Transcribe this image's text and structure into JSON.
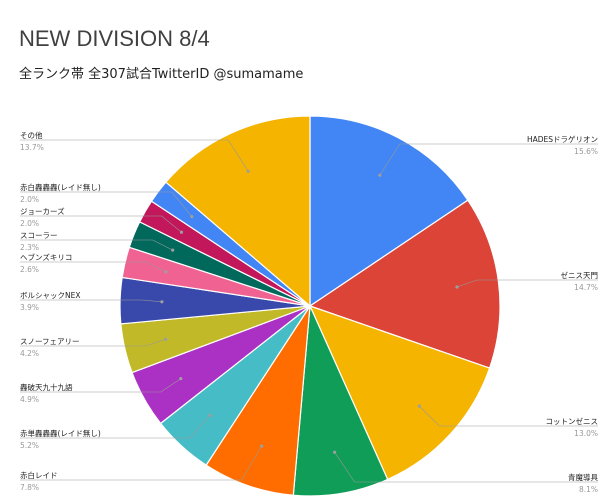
{
  "chart_data": {
    "type": "pie",
    "title": "NEW DIVISION 8/4",
    "subtitle": "全ランク帯 全307試合TwitterID @sumamame",
    "slices": [
      {
        "label": "HADESドラゲリオン",
        "percent_label": "15.6%",
        "value": 15.6,
        "color": "#4285f4"
      },
      {
        "label": "ゼニス天門",
        "percent_label": "14.7%",
        "value": 14.7,
        "color": "#db4437"
      },
      {
        "label": "コットンゼニス",
        "percent_label": "13.0%",
        "value": 13.0,
        "color": "#f4b400"
      },
      {
        "label": "青魔導具",
        "percent_label": "8.1%",
        "value": 8.1,
        "color": "#0f9d58"
      },
      {
        "label": "赤白レイド",
        "percent_label": "7.8%",
        "value": 7.8,
        "color": "#ff6d00"
      },
      {
        "label": "赤単轟轟轟(レイド無し)",
        "percent_label": "5.2%",
        "value": 5.2,
        "color": "#46bdc6"
      },
      {
        "label": "轟破天九十九語",
        "percent_label": "4.9%",
        "value": 4.9,
        "color": "#ab30c4"
      },
      {
        "label": "スノーフェアリー",
        "percent_label": "4.2%",
        "value": 4.2,
        "color": "#c2b928"
      },
      {
        "label": "ボルシャックNEX",
        "percent_label": "3.9%",
        "value": 3.9,
        "color": "#3949ab"
      },
      {
        "label": "ヘブンズキリコ",
        "percent_label": "2.6%",
        "value": 2.6,
        "color": "#f06292"
      },
      {
        "label": "スコーラー",
        "percent_label": "2.3%",
        "value": 2.3,
        "color": "#00695c"
      },
      {
        "label": "ジョーカーズ",
        "percent_label": "2.0%",
        "value": 2.0,
        "color": "#c2185b"
      },
      {
        "label": "赤白轟轟轟(レイド無し)",
        "percent_label": "2.0%",
        "value": 2.0,
        "color": "#4285f4"
      },
      {
        "label": "その他",
        "percent_label": "13.7%",
        "value": 13.7,
        "color": "#f4b400"
      }
    ]
  }
}
